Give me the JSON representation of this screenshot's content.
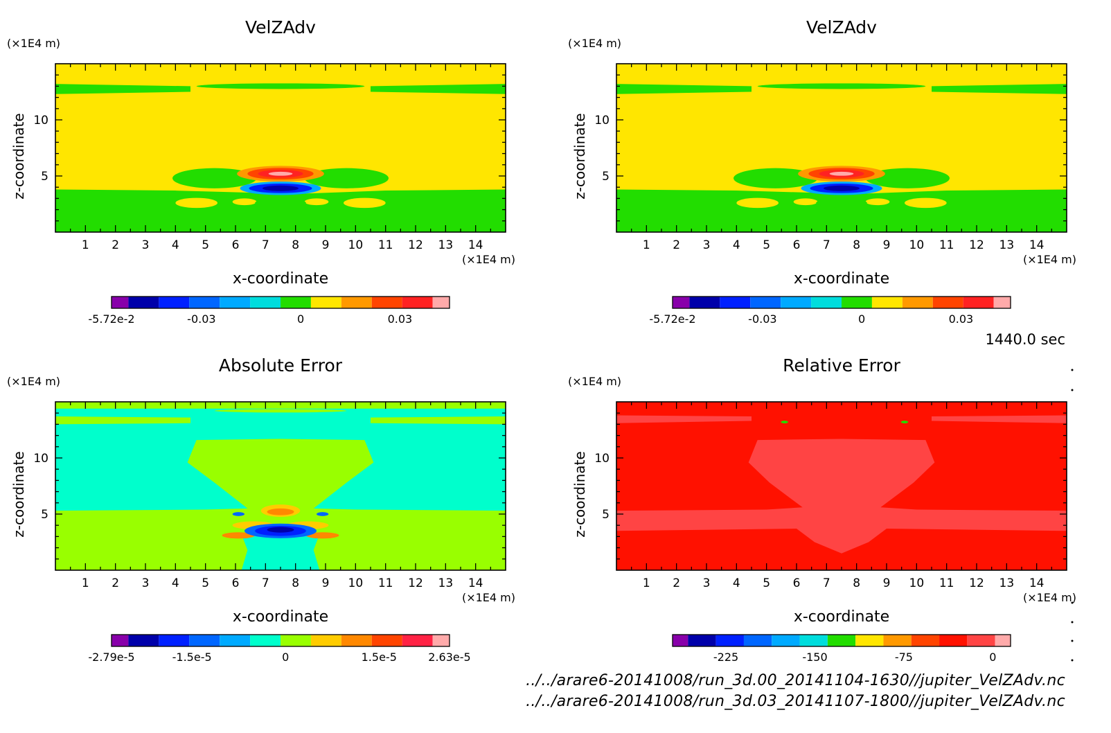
{
  "timestamp": "1440.0 sec",
  "footer": {
    "line1": "../../arare6-20141008/run_3d.00_20141104-1630//jupiter_VelZAdv.nc",
    "line2": "../../arare6-20141008/run_3d.03_20141107-1800//jupiter_VelZAdv.nc"
  },
  "chart_data": [
    {
      "type": "heatmap",
      "title": "VelZAdv",
      "xlabel": "x-coordinate",
      "ylabel": "z-coordinate",
      "x_unit": "(×1E4 m)",
      "y_unit": "(×1E4 m)",
      "xlim": [
        0,
        15
      ],
      "ylim": [
        0,
        15
      ],
      "x_ticks": [
        "1",
        "2",
        "3",
        "4",
        "5",
        "6",
        "7",
        "8",
        "9",
        "10",
        "11",
        "12",
        "13",
        "14"
      ],
      "y_ticks": [
        "5",
        "10"
      ],
      "colorbar": {
        "colors": [
          "#8800aa",
          "#0000aa",
          "#0020ff",
          "#0066ff",
          "#00aaff",
          "#00dddd",
          "#22dd00",
          "#ffe600",
          "#ff9900",
          "#ff4400",
          "#ff2222",
          "#ffaaaa"
        ],
        "tick_labels": [
          "-5.72e-2",
          "-0.03",
          "0",
          "0.03"
        ],
        "range": [
          -0.0572,
          0.045
        ]
      }
    },
    {
      "type": "heatmap",
      "title": "VelZAdv",
      "xlabel": "x-coordinate",
      "ylabel": "z-coordinate",
      "x_unit": "(×1E4 m)",
      "y_unit": "(×1E4 m)",
      "xlim": [
        0,
        15
      ],
      "ylim": [
        0,
        15
      ],
      "x_ticks": [
        "1",
        "2",
        "3",
        "4",
        "5",
        "6",
        "7",
        "8",
        "9",
        "10",
        "11",
        "12",
        "13",
        "14"
      ],
      "y_ticks": [
        "5",
        "10"
      ],
      "colorbar": {
        "colors": [
          "#8800aa",
          "#0000aa",
          "#0020ff",
          "#0066ff",
          "#00aaff",
          "#00dddd",
          "#22dd00",
          "#ffe600",
          "#ff9900",
          "#ff4400",
          "#ff2222",
          "#ffaaaa"
        ],
        "tick_labels": [
          "-5.72e-2",
          "-0.03",
          "0",
          "0.03"
        ],
        "range": [
          -0.0572,
          0.045
        ]
      }
    },
    {
      "type": "heatmap",
      "title": "Absolute Error",
      "xlabel": "x-coordinate",
      "ylabel": "z-coordinate",
      "x_unit": "(×1E4 m)",
      "y_unit": "(×1E4 m)",
      "xlim": [
        0,
        15
      ],
      "ylim": [
        0,
        15
      ],
      "x_ticks": [
        "1",
        "2",
        "3",
        "4",
        "5",
        "6",
        "7",
        "8",
        "9",
        "10",
        "11",
        "12",
        "13",
        "14"
      ],
      "y_ticks": [
        "5",
        "10"
      ],
      "colorbar": {
        "colors": [
          "#8800aa",
          "#0000aa",
          "#0020ff",
          "#0066ff",
          "#00aaff",
          "#00ffcc",
          "#99ff00",
          "#ffcc00",
          "#ff8800",
          "#ff4400",
          "#ff2244",
          "#ffaaaa"
        ],
        "tick_labels": [
          "-2.79e-5",
          "-1.5e-5",
          "0",
          "1.5e-5",
          "2.63e-5"
        ],
        "range": [
          -2.79e-05,
          2.63e-05
        ]
      }
    },
    {
      "type": "heatmap",
      "title": "Relative Error",
      "xlabel": "x-coordinate",
      "ylabel": "z-coordinate",
      "x_unit": "(×1E4 m)",
      "y_unit": "(×1E4 m)",
      "xlim": [
        0,
        15
      ],
      "ylim": [
        0,
        15
      ],
      "x_ticks": [
        "1",
        "2",
        "3",
        "4",
        "5",
        "6",
        "7",
        "8",
        "9",
        "10",
        "11",
        "12",
        "13",
        "14"
      ],
      "y_ticks": [
        "5",
        "10"
      ],
      "colorbar": {
        "colors": [
          "#8800aa",
          "#0000aa",
          "#0020ff",
          "#0066ff",
          "#00aaff",
          "#00dddd",
          "#22dd00",
          "#ffe600",
          "#ff9900",
          "#ff4400",
          "#ff1100",
          "#ff4444",
          "#ffaaaa"
        ],
        "tick_labels": [
          "-225",
          "-150",
          "-75",
          "0"
        ],
        "range": [
          -270,
          15
        ]
      }
    }
  ]
}
